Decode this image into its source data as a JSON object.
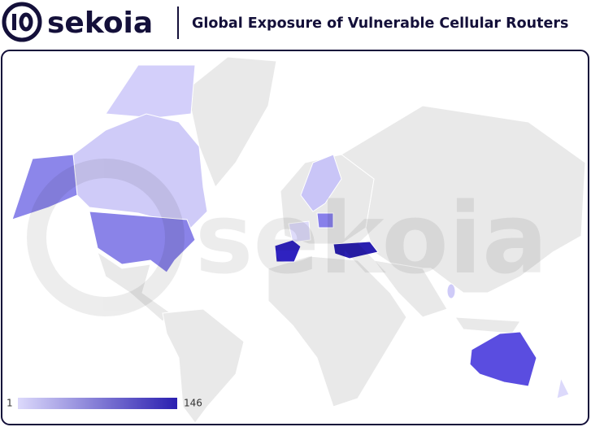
{
  "header": {
    "logo": "sekoia",
    "title": "Global Exposure of Vulnerable Cellular Routers"
  },
  "chart_data": {
    "type": "choropleth",
    "legend": {
      "min": 1,
      "max": 146,
      "colors": [
        "#dcd9fb",
        "#2a1fb0"
      ]
    }
  }
}
